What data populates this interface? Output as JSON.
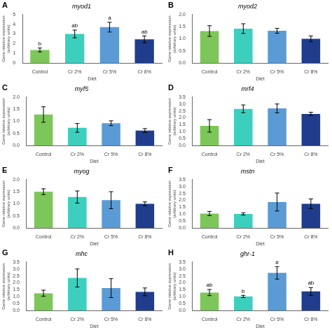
{
  "chart_data": [
    {
      "type": "bar",
      "panel_label": "A",
      "title": "myod1",
      "categories": [
        "Control",
        "Cr 2%",
        "Cr 5%",
        "Cr 8%"
      ],
      "values": [
        1.35,
        3.0,
        3.7,
        2.45
      ],
      "errors": [
        0.2,
        0.4,
        0.5,
        0.35
      ],
      "colors": [
        "#7dc65a",
        "#3dcfbe",
        "#5b9bd5",
        "#1f3d8c"
      ],
      "ylim": [
        0,
        5
      ],
      "yticks": [
        0,
        1,
        2,
        3,
        4,
        5
      ],
      "xlabel": "Diet",
      "ylabel": "Gene relative expression\n(arbitrary units)",
      "grid": false,
      "annotations": [
        {
          "category": "Control",
          "text": "b"
        },
        {
          "category": "Cr 2%",
          "text": "ab"
        },
        {
          "category": "Cr 5%",
          "text": "a"
        },
        {
          "category": "Cr 8%",
          "text": "ab"
        }
      ]
    },
    {
      "type": "bar",
      "panel_label": "B",
      "title": "myod2",
      "categories": [
        "Control",
        "Cr 2%",
        "Cr 5%",
        "Cr 8%"
      ],
      "values": [
        1.32,
        1.42,
        1.33,
        1.0
      ],
      "errors": [
        0.22,
        0.2,
        0.1,
        0.12
      ],
      "colors": [
        "#7dc65a",
        "#3dcfbe",
        "#5b9bd5",
        "#1f3d8c"
      ],
      "ylim": [
        0,
        2
      ],
      "yticks": [
        {
          "value": 0,
          "label": "0.0"
        },
        0.5,
        {
          "value": 1,
          "label": "1.0"
        },
        1.5,
        {
          "value": 2,
          "label": "2.0"
        }
      ],
      "xlabel": "Diet",
      "ylabel": "Gene relative expression\n(arbitrary units)",
      "grid": false
    },
    {
      "type": "bar",
      "panel_label": "C",
      "title": "myf5",
      "categories": [
        "Control",
        "Cr 2%",
        "Cr 5%",
        "Cr 8%"
      ],
      "values": [
        1.28,
        0.73,
        0.92,
        0.62
      ],
      "errors": [
        0.32,
        0.18,
        0.1,
        0.08
      ],
      "colors": [
        "#7dc65a",
        "#3dcfbe",
        "#5b9bd5",
        "#1f3d8c"
      ],
      "ylim": [
        0,
        2
      ],
      "yticks": [
        {
          "value": 0,
          "label": "0.0"
        },
        0.5,
        {
          "value": 1,
          "label": "1.0"
        },
        1.5,
        {
          "value": 2,
          "label": "2.0"
        }
      ],
      "xlabel": "Diet",
      "ylabel": "Gene relative expression\n(arbitrary units)",
      "grid": false
    },
    {
      "type": "bar",
      "panel_label": "D",
      "title": "mrf4",
      "categories": [
        "Control",
        "Cr 2%",
        "Cr 5%",
        "Cr 8%"
      ],
      "values": [
        1.42,
        2.65,
        2.68,
        2.28
      ],
      "errors": [
        0.45,
        0.28,
        0.32,
        0.12
      ],
      "colors": [
        "#7dc65a",
        "#3dcfbe",
        "#5b9bd5",
        "#1f3d8c"
      ],
      "ylim": [
        0,
        3.5
      ],
      "yticks": [
        {
          "value": 0,
          "label": "0.0"
        },
        0.5,
        {
          "value": 1,
          "label": "1.0"
        },
        1.5,
        {
          "value": 2,
          "label": "2.0"
        },
        2.5,
        {
          "value": 3,
          "label": "3.0"
        },
        3.5
      ],
      "xlabel": "Diet",
      "ylabel": "Gene relative expression\n(arbitrary units)",
      "grid": false
    },
    {
      "type": "bar",
      "panel_label": "E",
      "title": "myog",
      "categories": [
        "Control",
        "Cr 2%",
        "Cr 5%",
        "Cr 8%"
      ],
      "values": [
        1.5,
        1.28,
        1.15,
        1.0
      ],
      "errors": [
        0.12,
        0.25,
        0.35,
        0.08
      ],
      "colors": [
        "#7dc65a",
        "#3dcfbe",
        "#5b9bd5",
        "#1f3d8c"
      ],
      "ylim": [
        0,
        2
      ],
      "yticks": [
        {
          "value": 0,
          "label": "0.0"
        },
        0.5,
        {
          "value": 1,
          "label": "1.0"
        },
        1.5,
        {
          "value": 2,
          "label": "2.0"
        }
      ],
      "xlabel": "Diet",
      "ylabel": "Gene relative expression\n(arbitrary units)",
      "grid": false
    },
    {
      "type": "bar",
      "panel_label": "F",
      "title": "mstn",
      "categories": [
        "Control",
        "Cr 2%",
        "Cr 5%",
        "Cr 8%"
      ],
      "values": [
        1.05,
        1.02,
        1.88,
        1.75
      ],
      "errors": [
        0.15,
        0.08,
        0.65,
        0.35
      ],
      "colors": [
        "#7dc65a",
        "#3dcfbe",
        "#5b9bd5",
        "#1f3d8c"
      ],
      "ylim": [
        0,
        3.5
      ],
      "yticks": [
        {
          "value": 0,
          "label": "0.0"
        },
        0.5,
        {
          "value": 1,
          "label": "1.0"
        },
        1.5,
        {
          "value": 2,
          "label": "2.0"
        },
        2.5,
        {
          "value": 3,
          "label": "3.0"
        },
        3.5
      ],
      "xlabel": "Diet",
      "ylabel": "Gene relative expression\n(arbitrary units)",
      "grid": false
    },
    {
      "type": "bar",
      "panel_label": "G",
      "title": "mhc",
      "categories": [
        "Control",
        "Cr 2%",
        "Cr 5%",
        "Cr 8%"
      ],
      "values": [
        1.25,
        2.35,
        1.62,
        1.35
      ],
      "errors": [
        0.22,
        0.65,
        0.68,
        0.28
      ],
      "colors": [
        "#7dc65a",
        "#3dcfbe",
        "#5b9bd5",
        "#1f3d8c"
      ],
      "ylim": [
        0,
        3.5
      ],
      "yticks": [
        {
          "value": 0,
          "label": "0.0"
        },
        0.5,
        {
          "value": 1,
          "label": "1.0"
        },
        1.5,
        {
          "value": 2,
          "label": "2.0"
        },
        2.5,
        {
          "value": 3,
          "label": "3.0"
        },
        3.5
      ],
      "xlabel": "Diet",
      "ylabel": "Gene relative expression\n(arbitrary units)",
      "grid": false
    },
    {
      "type": "bar",
      "panel_label": "H",
      "title": "ghr-1",
      "categories": [
        "Control",
        "Cr 2%",
        "Cr 5%",
        "Cr 8%"
      ],
      "values": [
        1.3,
        1.02,
        2.72,
        1.38
      ],
      "errors": [
        0.22,
        0.08,
        0.45,
        0.28
      ],
      "colors": [
        "#7dc65a",
        "#3dcfbe",
        "#5b9bd5",
        "#1f3d8c"
      ],
      "ylim": [
        0,
        3.5
      ],
      "yticks": [
        {
          "value": 0,
          "label": "0.0"
        },
        0.5,
        {
          "value": 1,
          "label": "1.0"
        },
        1.5,
        {
          "value": 2,
          "label": "2.0"
        },
        2.5,
        {
          "value": 3,
          "label": "3.0"
        },
        3.5
      ],
      "xlabel": "Diet",
      "ylabel": "Gene relative expression\n(arbitrary units)",
      "grid": false,
      "annotations": [
        {
          "category": "Control",
          "text": "ab"
        },
        {
          "category": "Cr 2%",
          "text": "b"
        },
        {
          "category": "Cr 5%",
          "text": "#"
        },
        {
          "category": "Cr 8%",
          "text": "ab"
        }
      ]
    }
  ]
}
